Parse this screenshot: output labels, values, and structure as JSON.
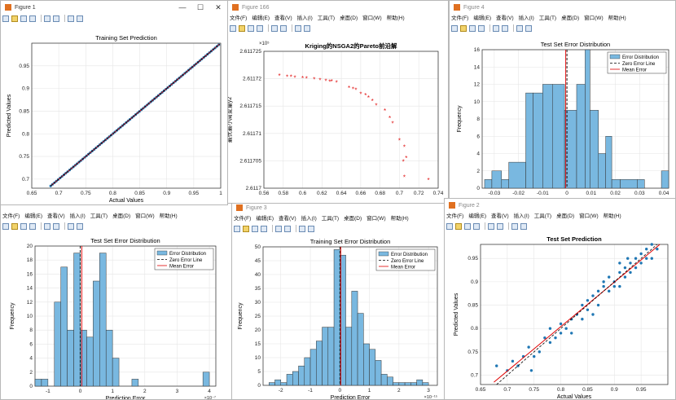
{
  "menu": [
    "文件(F)",
    "编辑(E)",
    "查看(V)",
    "插入(I)",
    "工具(T)",
    "桌面(D)",
    "窗口(W)",
    "帮助(H)"
  ],
  "menu_small": [
    "文件(F)",
    "编辑(E)",
    "查看(V)",
    "插入(I)",
    "工具(T)",
    "桌面(D)",
    "窗口(W)",
    "帮助(H)"
  ],
  "windows": {
    "fig1": {
      "title": "Figure 1"
    },
    "fig166": {
      "title": "Figure 166"
    },
    "fig4": {
      "title": "Figure 4"
    },
    "fig3": {
      "title": "Figure 3"
    },
    "fig2": {
      "title": "Figure 2"
    }
  },
  "controls": {
    "min": "—",
    "max": "☐",
    "close": "✕"
  },
  "legend": {
    "dist": "Error Distribution",
    "zero": "Zero Error Line",
    "mean": "Mean Error"
  },
  "charts": {
    "train_pred": {
      "title": "Training Set Prediction",
      "xlabel": "Actual Values",
      "ylabel": "Predicted Values",
      "xticks": [
        "0.65",
        "0.7",
        "0.75",
        "0.8",
        "0.85",
        "0.9",
        "0.95",
        "1"
      ],
      "yticks": [
        "0.7",
        "0.75",
        "0.8",
        "0.85",
        "0.9",
        "0.95"
      ],
      "xlim": [
        0.65,
        1.0
      ],
      "ylim": [
        0.68,
        1.0
      ]
    },
    "pareto": {
      "title": "Kriging的NSGA2的Pareto前沿解",
      "ylabel": "最优最小周变量y2",
      "exponent": "×10⁵",
      "xticks": [
        "0.56",
        "0.58",
        "0.6",
        "0.62",
        "0.64",
        "0.66",
        "0.68",
        "0.7",
        "0.72",
        "0.74"
      ],
      "yticks": [
        "2.6117",
        "2.611705",
        "2.61171",
        "2.611715",
        "2.61172",
        "2.611725"
      ],
      "xlim": [
        0.56,
        0.74
      ],
      "ylim": [
        2.6117,
        2.611725
      ],
      "points": [
        [
          0.576,
          2.6117205
        ],
        [
          0.584,
          2.6117203
        ],
        [
          0.588,
          2.6117203
        ],
        [
          0.592,
          2.6117202
        ],
        [
          0.6,
          2.6117201
        ],
        [
          0.604,
          2.61172
        ],
        [
          0.612,
          2.6117199
        ],
        [
          0.618,
          2.6117197
        ],
        [
          0.624,
          2.6117196
        ],
        [
          0.628,
          2.6117194
        ],
        [
          0.63,
          2.6117195
        ],
        [
          0.635,
          2.6117193
        ],
        [
          0.648,
          2.6117183
        ],
        [
          0.652,
          2.6117181
        ],
        [
          0.655,
          2.6117179
        ],
        [
          0.66,
          2.6117172
        ],
        [
          0.665,
          2.611717
        ],
        [
          0.668,
          2.6117165
        ],
        [
          0.672,
          2.6117159
        ],
        [
          0.676,
          2.6117151
        ],
        [
          0.685,
          2.6117141
        ],
        [
          0.69,
          2.6117128
        ],
        [
          0.693,
          2.6117118
        ],
        [
          0.7,
          2.6117087
        ],
        [
          0.705,
          2.6117075
        ],
        [
          0.707,
          2.6117055
        ],
        [
          0.704,
          2.6117048
        ],
        [
          0.73,
          2.6117015
        ],
        [
          0.705,
          2.611702
        ]
      ]
    },
    "test_err": {
      "title": "Test Set Error Distribution",
      "ylabel": "Frequency",
      "xticks": [
        "-0.03",
        "-0.02",
        "-0.01",
        "0",
        "0.01",
        "0.02",
        "0.03",
        "0.04"
      ],
      "yticks": [
        "0",
        "2",
        "4",
        "6",
        "8",
        "10",
        "12",
        "14",
        "16"
      ],
      "xlim": [
        -0.035,
        0.042
      ],
      "ylim": [
        0,
        16
      ],
      "bins": [
        [
          -0.034,
          -0.031,
          1
        ],
        [
          -0.031,
          -0.027,
          2
        ],
        [
          -0.027,
          -0.024,
          1
        ],
        [
          -0.024,
          -0.017,
          3
        ],
        [
          -0.017,
          -0.014,
          11
        ],
        [
          -0.014,
          -0.01,
          11
        ],
        [
          -0.01,
          -0.006,
          12
        ],
        [
          -0.006,
          -0.001,
          12
        ],
        [
          -0.001,
          0.004,
          9
        ],
        [
          0.004,
          0.0075,
          12
        ],
        [
          0.0075,
          0.0095,
          16
        ],
        [
          0.0095,
          0.013,
          9
        ],
        [
          0.013,
          0.016,
          4
        ],
        [
          0.016,
          0.0185,
          6
        ],
        [
          0.0185,
          0.022,
          1
        ],
        [
          0.022,
          0.029,
          1
        ],
        [
          0.029,
          0.032,
          1
        ],
        [
          0.039,
          0.042,
          2
        ]
      ],
      "mean": -0.0005
    },
    "train_err": {
      "title": "Training Set Error Distribution",
      "xlabel": "Prediction Error",
      "ylabel": "Frequency",
      "xexp": "×10⁻¹⁵",
      "xticks": [
        "-2",
        "-1",
        "0",
        "1",
        "2",
        "3"
      ],
      "yticks": [
        "0",
        "5",
        "10",
        "15",
        "20",
        "25",
        "30",
        "35",
        "40",
        "45",
        "50"
      ],
      "xlim": [
        -2.6,
        3.3
      ],
      "ylim": [
        0,
        50
      ],
      "bins": [
        [
          -2.4,
          -2.2,
          1
        ],
        [
          -2.2,
          -2.0,
          2
        ],
        [
          -2.0,
          -1.8,
          1
        ],
        [
          -1.8,
          -1.6,
          4
        ],
        [
          -1.6,
          -1.4,
          5
        ],
        [
          -1.4,
          -1.2,
          7
        ],
        [
          -1.2,
          -1.0,
          10
        ],
        [
          -1.0,
          -0.8,
          13
        ],
        [
          -0.8,
          -0.6,
          16
        ],
        [
          -0.6,
          -0.4,
          21
        ],
        [
          -0.4,
          -0.2,
          21
        ],
        [
          -0.2,
          0.0,
          49
        ],
        [
          0.0,
          0.2,
          47
        ],
        [
          0.2,
          0.4,
          21
        ],
        [
          0.4,
          0.6,
          34
        ],
        [
          0.6,
          0.8,
          26
        ],
        [
          0.8,
          1.0,
          15
        ],
        [
          1.0,
          1.2,
          13
        ],
        [
          1.2,
          1.4,
          9
        ],
        [
          1.4,
          1.6,
          4
        ],
        [
          1.6,
          1.8,
          3
        ],
        [
          1.8,
          2.0,
          1
        ],
        [
          2.0,
          2.2,
          1
        ],
        [
          2.2,
          2.4,
          1
        ],
        [
          2.4,
          2.6,
          1
        ],
        [
          2.6,
          2.8,
          2
        ],
        [
          2.8,
          3.0,
          1
        ]
      ],
      "mean": 0.03
    },
    "test_err2": {
      "title": "Test Set Error Distribution",
      "xlabel": "Prediction Error",
      "ylabel": "Frequency",
      "xexp": "×10⁻⁷",
      "xticks": [
        "-1",
        "0",
        "1",
        "2",
        "3",
        "4"
      ],
      "yticks": [
        "0",
        "2",
        "4",
        "6",
        "8",
        "10",
        "12",
        "14",
        "16",
        "18",
        "20"
      ],
      "xlim": [
        -1.4,
        4.2
      ],
      "ylim": [
        0,
        20
      ],
      "bins": [
        [
          -1.4,
          -1.2,
          1
        ],
        [
          -1.2,
          -1.0,
          1
        ],
        [
          -0.8,
          -0.6,
          12
        ],
        [
          -0.6,
          -0.4,
          17
        ],
        [
          -0.4,
          -0.2,
          8
        ],
        [
          -0.2,
          0.0,
          19
        ],
        [
          0.0,
          0.2,
          8
        ],
        [
          0.2,
          0.4,
          7
        ],
        [
          0.4,
          0.6,
          15
        ],
        [
          0.6,
          0.8,
          19
        ],
        [
          0.8,
          1.0,
          8
        ],
        [
          1.0,
          1.2,
          4
        ],
        [
          1.6,
          1.8,
          1
        ],
        [
          3.8,
          4.0,
          2
        ]
      ],
      "mean": 0.05
    },
    "test_pred": {
      "title": "Test Set Prediction",
      "xlabel": "Actual Values",
      "ylabel": "Predicted Values",
      "xticks": [
        "0.65",
        "0.7",
        "0.75",
        "0.8",
        "0.85",
        "0.9",
        "0.95"
      ],
      "yticks": [
        "0.7",
        "0.75",
        "0.8",
        "0.85",
        "0.9",
        "0.95"
      ],
      "xlim": [
        0.65,
        1.0
      ],
      "ylim": [
        0.68,
        0.98
      ],
      "points": [
        [
          0.68,
          0.72
        ],
        [
          0.7,
          0.71
        ],
        [
          0.71,
          0.73
        ],
        [
          0.72,
          0.72
        ],
        [
          0.73,
          0.74
        ],
        [
          0.74,
          0.76
        ],
        [
          0.745,
          0.71
        ],
        [
          0.75,
          0.74
        ],
        [
          0.76,
          0.75
        ],
        [
          0.77,
          0.78
        ],
        [
          0.78,
          0.77
        ],
        [
          0.78,
          0.8
        ],
        [
          0.79,
          0.78
        ],
        [
          0.8,
          0.79
        ],
        [
          0.8,
          0.81
        ],
        [
          0.81,
          0.8
        ],
        [
          0.82,
          0.82
        ],
        [
          0.82,
          0.79
        ],
        [
          0.83,
          0.83
        ],
        [
          0.84,
          0.82
        ],
        [
          0.84,
          0.85
        ],
        [
          0.85,
          0.86
        ],
        [
          0.85,
          0.84
        ],
        [
          0.86,
          0.87
        ],
        [
          0.86,
          0.83
        ],
        [
          0.87,
          0.88
        ],
        [
          0.87,
          0.85
        ],
        [
          0.88,
          0.89
        ],
        [
          0.88,
          0.9
        ],
        [
          0.89,
          0.88
        ],
        [
          0.89,
          0.91
        ],
        [
          0.9,
          0.89
        ],
        [
          0.9,
          0.9
        ],
        [
          0.91,
          0.92
        ],
        [
          0.91,
          0.89
        ],
        [
          0.92,
          0.93
        ],
        [
          0.92,
          0.91
        ],
        [
          0.93,
          0.94
        ],
        [
          0.93,
          0.92
        ],
        [
          0.94,
          0.95
        ],
        [
          0.94,
          0.93
        ],
        [
          0.95,
          0.96
        ],
        [
          0.95,
          0.94
        ],
        [
          0.96,
          0.97
        ],
        [
          0.96,
          0.95
        ],
        [
          0.97,
          0.95
        ],
        [
          0.97,
          0.98
        ],
        [
          0.98,
          0.97
        ],
        [
          0.925,
          0.95
        ],
        [
          0.91,
          0.94
        ]
      ]
    }
  }
}
